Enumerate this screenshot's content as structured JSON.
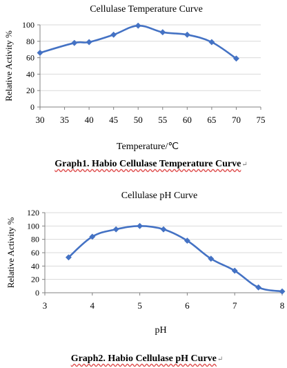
{
  "charts": [
    {
      "caption": "Graph1. Habio Cellulase Temperature Curve",
      "chart_data": {
        "type": "line",
        "title": "Cellulase Temperature Curve",
        "xlabel": "Temperature/℃",
        "ylabel": "Relative Activity %",
        "xlim": [
          30,
          75
        ],
        "ylim": [
          0,
          100
        ],
        "x_ticks": [
          30,
          35,
          40,
          45,
          50,
          55,
          60,
          65,
          70,
          75
        ],
        "y_ticks": [
          0,
          20,
          40,
          60,
          80,
          100
        ],
        "grid": "horizontal",
        "legend": "none",
        "series": [
          {
            "x": [
              30,
              37,
              40,
              45,
              50,
              55,
              60,
              65,
              70
            ],
            "y": [
              66,
              78,
              79,
              88,
              99,
              91,
              88,
              79,
              59
            ]
          }
        ],
        "color": "#4472c4"
      }
    },
    {
      "caption": "Graph2. Habio Cellulase pH Curve",
      "chart_data": {
        "type": "line",
        "title": "Cellulase pH Curve",
        "xlabel": "pH",
        "ylabel": "Relative Activity %",
        "xlim": [
          3,
          8
        ],
        "ylim": [
          0,
          120
        ],
        "x_ticks": [
          3,
          4,
          5,
          6,
          7,
          8
        ],
        "y_ticks": [
          0,
          20,
          40,
          60,
          80,
          100,
          120
        ],
        "grid": "horizontal",
        "legend": "none",
        "series": [
          {
            "x": [
              3.5,
              4,
              4.5,
              5,
              5.5,
              6,
              6.5,
              7,
              7.5,
              8
            ],
            "y": [
              53,
              84,
              95,
              100,
              95,
              78,
              51,
              33,
              8,
              2
            ]
          }
        ],
        "color": "#4472c4"
      }
    }
  ]
}
